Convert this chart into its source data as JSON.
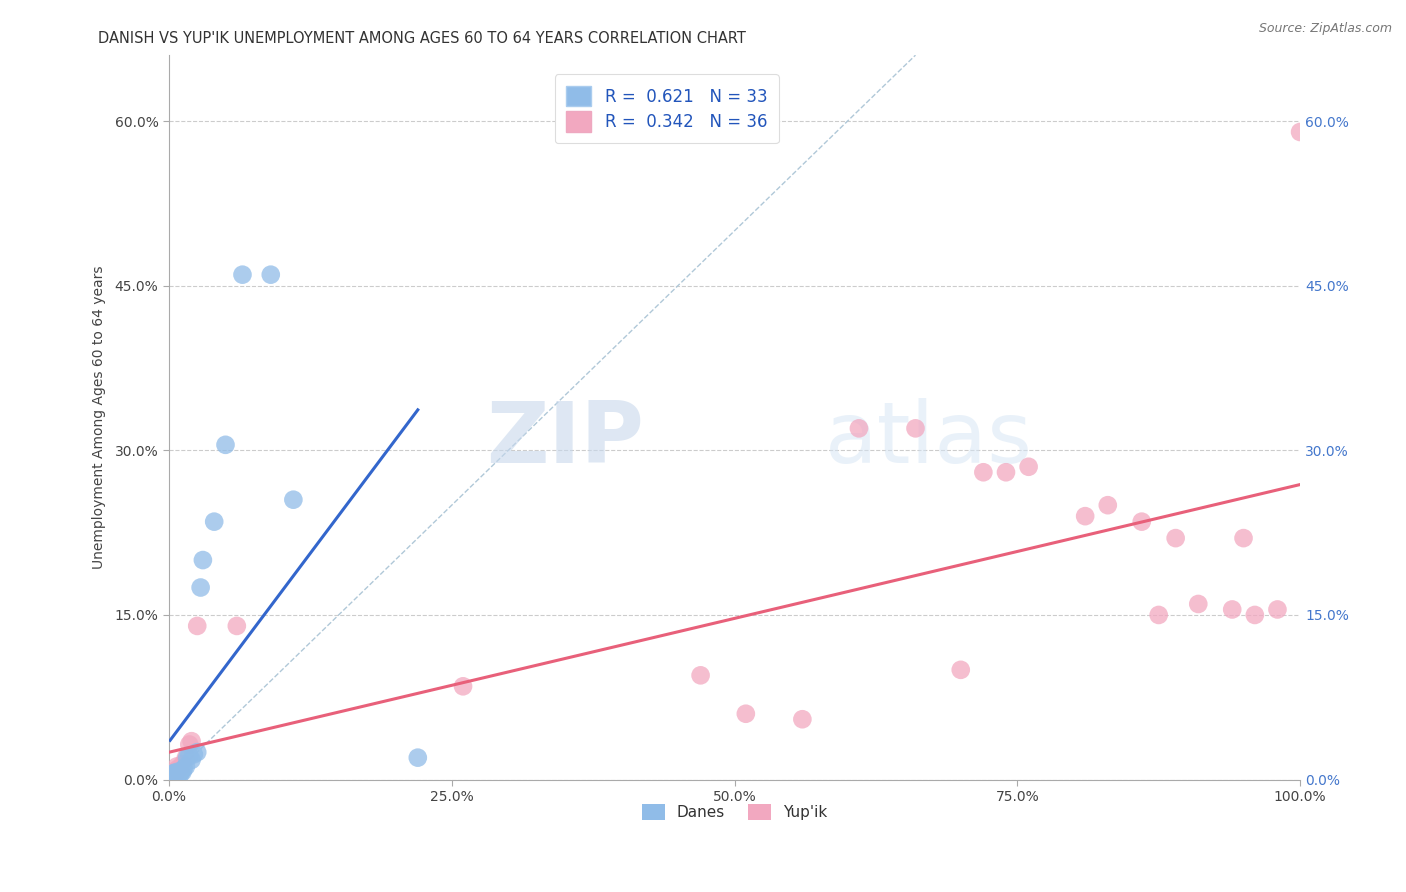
{
  "title": "DANISH VS YUP'IK UNEMPLOYMENT AMONG AGES 60 TO 64 YEARS CORRELATION CHART",
  "source": "Source: ZipAtlas.com",
  "ylabel": "Unemployment Among Ages 60 to 64 years",
  "xlim": [
    0,
    1.0
  ],
  "ylim": [
    0,
    0.66
  ],
  "xticks": [
    0.0,
    0.25,
    0.5,
    0.75,
    1.0
  ],
  "xtick_labels": [
    "0.0%",
    "25.0%",
    "50.0%",
    "75.0%",
    "100.0%"
  ],
  "ytick_positions": [
    0.0,
    0.15,
    0.3,
    0.45,
    0.6
  ],
  "ytick_labels": [
    "0.0%",
    "15.0%",
    "30.0%",
    "45.0%",
    "60.0%"
  ],
  "legend_R_label1": "R =  0.621   N = 33",
  "legend_R_label2": "R =  0.342   N = 36",
  "danes_color": "#90bce8",
  "yupik_color": "#f2a8c0",
  "danes_line_color": "#3366cc",
  "yupik_line_color": "#e8607a",
  "danes_x": [
    0.001,
    0.002,
    0.002,
    0.003,
    0.003,
    0.004,
    0.004,
    0.005,
    0.005,
    0.006,
    0.006,
    0.007,
    0.007,
    0.008,
    0.009,
    0.01,
    0.011,
    0.012,
    0.013,
    0.015,
    0.016,
    0.018,
    0.02,
    0.022,
    0.025,
    0.028,
    0.03,
    0.04,
    0.05,
    0.065,
    0.09,
    0.11,
    0.22
  ],
  "danes_y": [
    0.002,
    0.003,
    0.004,
    0.005,
    0.003,
    0.004,
    0.006,
    0.003,
    0.005,
    0.004,
    0.006,
    0.005,
    0.007,
    0.004,
    0.006,
    0.005,
    0.008,
    0.007,
    0.01,
    0.012,
    0.02,
    0.022,
    0.018,
    0.023,
    0.025,
    0.175,
    0.2,
    0.235,
    0.305,
    0.46,
    0.46,
    0.255,
    0.02
  ],
  "yupik_x": [
    0.001,
    0.002,
    0.003,
    0.004,
    0.005,
    0.006,
    0.007,
    0.008,
    0.01,
    0.012,
    0.015,
    0.018,
    0.02,
    0.025,
    0.06,
    0.26,
    0.47,
    0.51,
    0.56,
    0.61,
    0.66,
    0.7,
    0.72,
    0.74,
    0.76,
    0.81,
    0.83,
    0.86,
    0.875,
    0.89,
    0.91,
    0.94,
    0.95,
    0.96,
    0.98,
    1.0
  ],
  "yupik_y": [
    0.003,
    0.005,
    0.004,
    0.006,
    0.005,
    0.008,
    0.012,
    0.01,
    0.007,
    0.014,
    0.02,
    0.032,
    0.035,
    0.14,
    0.14,
    0.085,
    0.095,
    0.06,
    0.055,
    0.32,
    0.32,
    0.1,
    0.28,
    0.28,
    0.285,
    0.24,
    0.25,
    0.235,
    0.15,
    0.22,
    0.16,
    0.155,
    0.22,
    0.15,
    0.155,
    0.59
  ],
  "watermark_zip": "ZIP",
  "watermark_atlas": "atlas",
  "background_color": "#ffffff",
  "grid_color": "#cccccc"
}
